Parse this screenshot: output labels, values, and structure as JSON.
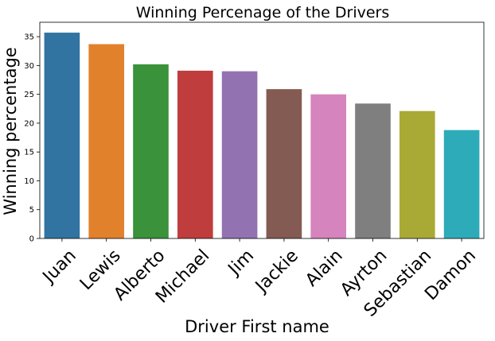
{
  "chart_data": {
    "type": "bar",
    "title": "Winning Percenage of the Drivers",
    "xlabel": "Driver First name",
    "ylabel": "Winning percentage",
    "categories": [
      "Juan",
      "Lewis",
      "Alberto",
      "Michael",
      "Jim",
      "Jackie",
      "Alain",
      "Ayrton",
      "Sebastian",
      "Damon"
    ],
    "values": [
      35.7,
      33.7,
      30.2,
      29.1,
      29.0,
      25.9,
      25.0,
      23.4,
      22.1,
      18.8
    ],
    "colors": [
      "#3274a1",
      "#e1812c",
      "#3a923a",
      "#c03d3e",
      "#9372b2",
      "#845b53",
      "#d684bd",
      "#7f7f7f",
      "#a9aa35",
      "#2eabb8"
    ],
    "yticks": [
      0,
      5,
      10,
      15,
      20,
      25,
      30,
      35
    ],
    "ylim": [
      0,
      37.5
    ],
    "grid": false,
    "legend": "none"
  }
}
